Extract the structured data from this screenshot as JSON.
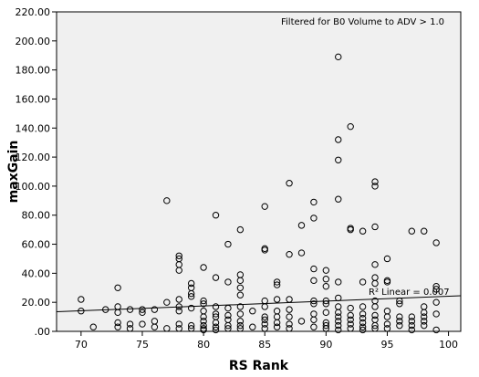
{
  "chart_data": {
    "type": "scatter",
    "xlabel": "RS Rank",
    "ylabel": "maxGain",
    "xlim": [
      68,
      101
    ],
    "ylim": [
      0,
      220
    ],
    "xticks": [
      70,
      75,
      80,
      85,
      90,
      95,
      100
    ],
    "yticks": [
      0,
      20,
      40,
      60,
      80,
      100,
      120,
      140,
      160,
      180,
      200,
      220
    ],
    "x_tick_labels": [
      "70",
      "75",
      "80",
      "85",
      "90",
      "95",
      "100"
    ],
    "y_tick_labels": [
      ".00",
      "20.00",
      "40.00",
      "60.00",
      "80.00",
      "100.00",
      "120.00",
      "140.00",
      "160.00",
      "180.00",
      "200.00",
      "220.00"
    ],
    "annotation": "Filtered for B0 Volume to ADV > 1.0",
    "fit_label": "R² Linear = 0.007",
    "fit_line": {
      "x": [
        68,
        101
      ],
      "y": [
        13.5,
        24.5
      ]
    },
    "marker": "open-circle",
    "colors": {
      "plot_bg": "#f0f0f0",
      "marker": "#000000",
      "fit_line": "#000000"
    },
    "points": [
      [
        70,
        22
      ],
      [
        70,
        14
      ],
      [
        71,
        3
      ],
      [
        72,
        15
      ],
      [
        73,
        30
      ],
      [
        73,
        17
      ],
      [
        73,
        13
      ],
      [
        73,
        6
      ],
      [
        73,
        3
      ],
      [
        74,
        15
      ],
      [
        74,
        5
      ],
      [
        74,
        2
      ],
      [
        75,
        15
      ],
      [
        75,
        13
      ],
      [
        75,
        5
      ],
      [
        76,
        15
      ],
      [
        76,
        7
      ],
      [
        76,
        3
      ],
      [
        77,
        90
      ],
      [
        77,
        20
      ],
      [
        77,
        2
      ],
      [
        78,
        52
      ],
      [
        78,
        50
      ],
      [
        78,
        46
      ],
      [
        78,
        42
      ],
      [
        78,
        22
      ],
      [
        78,
        17
      ],
      [
        78,
        14
      ],
      [
        78,
        5
      ],
      [
        78,
        2
      ],
      [
        79,
        33
      ],
      [
        79,
        30
      ],
      [
        79,
        26
      ],
      [
        79,
        24
      ],
      [
        79,
        16
      ],
      [
        79,
        4
      ],
      [
        79,
        2
      ],
      [
        80,
        44
      ],
      [
        80,
        21
      ],
      [
        80,
        19
      ],
      [
        80,
        14
      ],
      [
        80,
        10
      ],
      [
        80,
        7
      ],
      [
        80,
        4
      ],
      [
        80,
        2
      ],
      [
        80,
        1
      ],
      [
        81,
        80
      ],
      [
        81,
        37
      ],
      [
        81,
        17
      ],
      [
        81,
        12
      ],
      [
        81,
        10
      ],
      [
        81,
        6
      ],
      [
        81,
        3
      ],
      [
        81,
        1
      ],
      [
        82,
        60
      ],
      [
        82,
        34
      ],
      [
        82,
        16
      ],
      [
        82,
        11
      ],
      [
        82,
        8
      ],
      [
        82,
        4
      ],
      [
        82,
        2
      ],
      [
        83,
        70
      ],
      [
        83,
        39
      ],
      [
        83,
        35
      ],
      [
        83,
        30
      ],
      [
        83,
        25
      ],
      [
        83,
        17
      ],
      [
        83,
        12
      ],
      [
        83,
        7
      ],
      [
        83,
        4
      ],
      [
        83,
        2
      ],
      [
        84,
        14
      ],
      [
        84,
        3
      ],
      [
        85,
        86
      ],
      [
        85,
        57
      ],
      [
        85,
        56
      ],
      [
        85,
        21
      ],
      [
        85,
        17
      ],
      [
        85,
        10
      ],
      [
        85,
        8
      ],
      [
        85,
        5
      ],
      [
        85,
        2
      ],
      [
        86,
        34
      ],
      [
        86,
        32
      ],
      [
        86,
        22
      ],
      [
        86,
        14
      ],
      [
        86,
        10
      ],
      [
        86,
        6
      ],
      [
        86,
        3
      ],
      [
        87,
        102
      ],
      [
        87,
        53
      ],
      [
        87,
        22
      ],
      [
        87,
        15
      ],
      [
        87,
        10
      ],
      [
        87,
        5
      ],
      [
        87,
        2
      ],
      [
        88,
        73
      ],
      [
        88,
        54
      ],
      [
        88,
        7
      ],
      [
        89,
        89
      ],
      [
        89,
        78
      ],
      [
        89,
        43
      ],
      [
        89,
        35
      ],
      [
        89,
        21
      ],
      [
        89,
        19
      ],
      [
        89,
        12
      ],
      [
        89,
        8
      ],
      [
        89,
        3
      ],
      [
        90,
        42
      ],
      [
        90,
        36
      ],
      [
        90,
        31
      ],
      [
        90,
        21
      ],
      [
        90,
        19
      ],
      [
        90,
        13
      ],
      [
        90,
        6
      ],
      [
        90,
        4
      ],
      [
        90,
        2
      ],
      [
        91,
        189
      ],
      [
        91,
        132
      ],
      [
        91,
        118
      ],
      [
        91,
        91
      ],
      [
        91,
        34
      ],
      [
        91,
        23
      ],
      [
        91,
        17
      ],
      [
        91,
        13
      ],
      [
        91,
        10
      ],
      [
        91,
        7
      ],
      [
        91,
        4
      ],
      [
        91,
        1
      ],
      [
        92,
        141
      ],
      [
        92,
        71
      ],
      [
        92,
        70
      ],
      [
        92,
        16
      ],
      [
        92,
        11
      ],
      [
        92,
        8
      ],
      [
        92,
        5
      ],
      [
        92,
        2
      ],
      [
        93,
        69
      ],
      [
        93,
        34
      ],
      [
        93,
        17
      ],
      [
        93,
        12
      ],
      [
        93,
        9
      ],
      [
        93,
        6
      ],
      [
        93,
        3
      ],
      [
        93,
        1
      ],
      [
        94,
        103
      ],
      [
        94,
        100
      ],
      [
        94,
        72
      ],
      [
        94,
        46
      ],
      [
        94,
        37
      ],
      [
        94,
        33
      ],
      [
        94,
        21
      ],
      [
        94,
        17
      ],
      [
        94,
        11
      ],
      [
        94,
        8
      ],
      [
        94,
        4
      ],
      [
        94,
        2
      ],
      [
        95,
        50
      ],
      [
        95,
        35
      ],
      [
        95,
        34
      ],
      [
        95,
        14
      ],
      [
        95,
        10
      ],
      [
        95,
        5
      ],
      [
        95,
        2
      ],
      [
        96,
        21
      ],
      [
        96,
        19
      ],
      [
        96,
        10
      ],
      [
        96,
        7
      ],
      [
        96,
        4
      ],
      [
        97,
        69
      ],
      [
        97,
        10
      ],
      [
        97,
        7
      ],
      [
        97,
        4
      ],
      [
        97,
        1
      ],
      [
        98,
        69
      ],
      [
        98,
        17
      ],
      [
        98,
        13
      ],
      [
        98,
        10
      ],
      [
        98,
        7
      ],
      [
        98,
        4
      ],
      [
        99,
        61
      ],
      [
        99,
        31
      ],
      [
        99,
        29
      ],
      [
        99,
        20
      ],
      [
        99,
        12
      ],
      [
        99,
        1
      ]
    ]
  }
}
